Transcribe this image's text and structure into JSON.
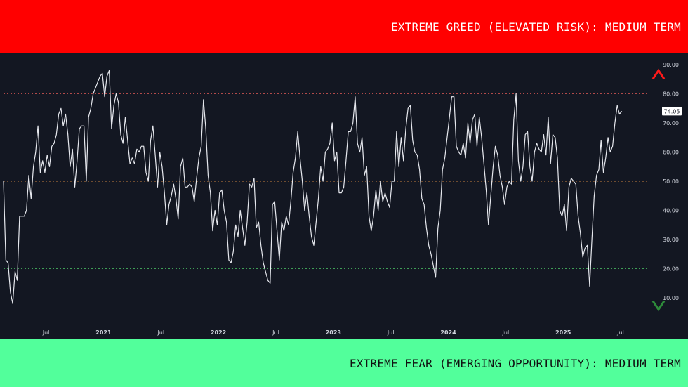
{
  "top_banner": {
    "label": "EXTREME GREED (ELEVATED RISK): MEDIUM TERM",
    "color": "#ff0000"
  },
  "bottom_banner": {
    "label": "EXTREME FEAR (EMERGING OPPORTUNITY): MEDIUM TERM",
    "color": "#52ff9b"
  },
  "chart_data": {
    "type": "line",
    "title": "",
    "xlabel": "",
    "ylabel": "",
    "ylim": [
      5,
      93
    ],
    "y_ticks": [
      "10.00",
      "20.00",
      "30.00",
      "40.00",
      "50.00",
      "60.00",
      "70.00",
      "80.00",
      "90.00"
    ],
    "y_tick_values": [
      10,
      20,
      30,
      40,
      50,
      60,
      70,
      80,
      90
    ],
    "x_ticks": [
      {
        "label": "Jul",
        "t": 2020.5
      },
      {
        "label": "2021",
        "t": 2021.0,
        "bold": true
      },
      {
        "label": "Jul",
        "t": 2021.5
      },
      {
        "label": "2022",
        "t": 2022.0,
        "bold": true
      },
      {
        "label": "Jul",
        "t": 2022.5
      },
      {
        "label": "2023",
        "t": 2023.0,
        "bold": true
      },
      {
        "label": "Jul",
        "t": 2023.5
      },
      {
        "label": "2024",
        "t": 2024.0,
        "bold": true
      },
      {
        "label": "Jul",
        "t": 2024.5
      },
      {
        "label": "2025",
        "t": 2025.0,
        "bold": true
      },
      {
        "label": "Jul",
        "t": 2025.5
      }
    ],
    "xlim": [
      2020.13,
      2025.75
    ],
    "reference_lines": [
      {
        "value": 80,
        "color": "#b24a4a"
      },
      {
        "value": 50,
        "color": "#c9823e"
      },
      {
        "value": 20,
        "color": "#3f9f57"
      }
    ],
    "last_value_label": "74.05",
    "arrow": {
      "top_color": "#ff1a1a",
      "bottom_color": "#2e8b3a"
    },
    "series": [
      {
        "color": "#e6e8ee",
        "points": [
          [
            2020.13,
            50
          ],
          [
            2020.15,
            23
          ],
          [
            2020.17,
            22
          ],
          [
            2020.19,
            12
          ],
          [
            2020.21,
            8
          ],
          [
            2020.23,
            19
          ],
          [
            2020.25,
            16
          ],
          [
            2020.27,
            38
          ],
          [
            2020.29,
            38
          ],
          [
            2020.31,
            38
          ],
          [
            2020.33,
            40
          ],
          [
            2020.35,
            52
          ],
          [
            2020.37,
            44
          ],
          [
            2020.39,
            55
          ],
          [
            2020.41,
            60
          ],
          [
            2020.43,
            69
          ],
          [
            2020.45,
            53
          ],
          [
            2020.47,
            57
          ],
          [
            2020.49,
            53
          ],
          [
            2020.51,
            59
          ],
          [
            2020.53,
            55
          ],
          [
            2020.55,
            62
          ],
          [
            2020.57,
            63
          ],
          [
            2020.59,
            66
          ],
          [
            2020.61,
            73
          ],
          [
            2020.63,
            75
          ],
          [
            2020.65,
            69
          ],
          [
            2020.67,
            73
          ],
          [
            2020.69,
            66
          ],
          [
            2020.71,
            55
          ],
          [
            2020.73,
            61
          ],
          [
            2020.75,
            48
          ],
          [
            2020.77,
            57
          ],
          [
            2020.79,
            68
          ],
          [
            2020.81,
            69
          ],
          [
            2020.83,
            69
          ],
          [
            2020.85,
            50
          ],
          [
            2020.87,
            72
          ],
          [
            2020.89,
            75
          ],
          [
            2020.91,
            80
          ],
          [
            2020.93,
            82
          ],
          [
            2020.95,
            84
          ],
          [
            2020.97,
            86
          ],
          [
            2020.99,
            87
          ],
          [
            2021.01,
            79
          ],
          [
            2021.03,
            86
          ],
          [
            2021.05,
            88
          ],
          [
            2021.07,
            68
          ],
          [
            2021.09,
            76
          ],
          [
            2021.11,
            80
          ],
          [
            2021.13,
            77
          ],
          [
            2021.15,
            66
          ],
          [
            2021.17,
            63
          ],
          [
            2021.19,
            72
          ],
          [
            2021.21,
            64
          ],
          [
            2021.23,
            56
          ],
          [
            2021.25,
            58
          ],
          [
            2021.27,
            56
          ],
          [
            2021.29,
            61
          ],
          [
            2021.31,
            60
          ],
          [
            2021.33,
            62
          ],
          [
            2021.35,
            62
          ],
          [
            2021.37,
            53
          ],
          [
            2021.39,
            50
          ],
          [
            2021.41,
            64
          ],
          [
            2021.43,
            69
          ],
          [
            2021.45,
            59
          ],
          [
            2021.47,
            48
          ],
          [
            2021.49,
            60
          ],
          [
            2021.51,
            55
          ],
          [
            2021.53,
            46
          ],
          [
            2021.55,
            35
          ],
          [
            2021.57,
            42
          ],
          [
            2021.59,
            45
          ],
          [
            2021.61,
            49
          ],
          [
            2021.63,
            44
          ],
          [
            2021.65,
            37
          ],
          [
            2021.67,
            55
          ],
          [
            2021.69,
            58
          ],
          [
            2021.71,
            48
          ],
          [
            2021.73,
            48
          ],
          [
            2021.75,
            49
          ],
          [
            2021.77,
            48
          ],
          [
            2021.79,
            43
          ],
          [
            2021.81,
            51
          ],
          [
            2021.83,
            58
          ],
          [
            2021.85,
            62
          ],
          [
            2021.87,
            78
          ],
          [
            2021.89,
            68
          ],
          [
            2021.91,
            52
          ],
          [
            2021.93,
            46
          ],
          [
            2021.95,
            33
          ],
          [
            2021.97,
            40
          ],
          [
            2021.99,
            35
          ],
          [
            2022.01,
            46
          ],
          [
            2022.03,
            47
          ],
          [
            2022.05,
            40
          ],
          [
            2022.07,
            36
          ],
          [
            2022.09,
            23
          ],
          [
            2022.11,
            22
          ],
          [
            2022.13,
            26
          ],
          [
            2022.15,
            35
          ],
          [
            2022.17,
            31
          ],
          [
            2022.19,
            40
          ],
          [
            2022.21,
            34
          ],
          [
            2022.23,
            28
          ],
          [
            2022.25,
            36
          ],
          [
            2022.27,
            49
          ],
          [
            2022.29,
            48
          ],
          [
            2022.31,
            51
          ],
          [
            2022.33,
            34
          ],
          [
            2022.35,
            36
          ],
          [
            2022.37,
            28
          ],
          [
            2022.39,
            22
          ],
          [
            2022.41,
            19
          ],
          [
            2022.43,
            16
          ],
          [
            2022.45,
            15
          ],
          [
            2022.47,
            42
          ],
          [
            2022.49,
            43
          ],
          [
            2022.51,
            33
          ],
          [
            2022.53,
            23
          ],
          [
            2022.55,
            36
          ],
          [
            2022.57,
            33
          ],
          [
            2022.59,
            38
          ],
          [
            2022.61,
            35
          ],
          [
            2022.63,
            43
          ],
          [
            2022.65,
            53
          ],
          [
            2022.67,
            58
          ],
          [
            2022.69,
            67
          ],
          [
            2022.71,
            58
          ],
          [
            2022.73,
            50
          ],
          [
            2022.75,
            40
          ],
          [
            2022.77,
            46
          ],
          [
            2022.79,
            38
          ],
          [
            2022.81,
            31
          ],
          [
            2022.83,
            28
          ],
          [
            2022.85,
            36
          ],
          [
            2022.87,
            44
          ],
          [
            2022.89,
            55
          ],
          [
            2022.91,
            50
          ],
          [
            2022.93,
            60
          ],
          [
            2022.95,
            61
          ],
          [
            2022.97,
            63
          ],
          [
            2022.99,
            70
          ],
          [
            2023.01,
            57
          ],
          [
            2023.03,
            60
          ],
          [
            2023.05,
            46
          ],
          [
            2023.07,
            46
          ],
          [
            2023.09,
            48
          ],
          [
            2023.11,
            57
          ],
          [
            2023.13,
            67
          ],
          [
            2023.15,
            67
          ],
          [
            2023.17,
            70
          ],
          [
            2023.19,
            79
          ],
          [
            2023.21,
            63
          ],
          [
            2023.23,
            60
          ],
          [
            2023.25,
            65
          ],
          [
            2023.27,
            52
          ],
          [
            2023.29,
            55
          ],
          [
            2023.31,
            38
          ],
          [
            2023.33,
            33
          ],
          [
            2023.35,
            38
          ],
          [
            2023.37,
            47
          ],
          [
            2023.39,
            40
          ],
          [
            2023.41,
            50
          ],
          [
            2023.43,
            43
          ],
          [
            2023.45,
            46
          ],
          [
            2023.47,
            43
          ],
          [
            2023.49,
            41
          ],
          [
            2023.51,
            50
          ],
          [
            2023.53,
            50
          ],
          [
            2023.55,
            67
          ],
          [
            2023.57,
            55
          ],
          [
            2023.59,
            65
          ],
          [
            2023.61,
            57
          ],
          [
            2023.63,
            68
          ],
          [
            2023.65,
            75
          ],
          [
            2023.67,
            76
          ],
          [
            2023.69,
            64
          ],
          [
            2023.71,
            60
          ],
          [
            2023.73,
            59
          ],
          [
            2023.75,
            54
          ],
          [
            2023.77,
            44
          ],
          [
            2023.79,
            42
          ],
          [
            2023.81,
            34
          ],
          [
            2023.83,
            28
          ],
          [
            2023.85,
            25
          ],
          [
            2023.87,
            21
          ],
          [
            2023.89,
            17
          ],
          [
            2023.91,
            34
          ],
          [
            2023.93,
            40
          ],
          [
            2023.95,
            54
          ],
          [
            2023.97,
            58
          ],
          [
            2023.99,
            65
          ],
          [
            2024.01,
            72
          ],
          [
            2024.03,
            79
          ],
          [
            2024.05,
            79
          ],
          [
            2024.07,
            62
          ],
          [
            2024.09,
            60
          ],
          [
            2024.11,
            59
          ],
          [
            2024.13,
            63
          ],
          [
            2024.15,
            58
          ],
          [
            2024.17,
            70
          ],
          [
            2024.19,
            63
          ],
          [
            2024.21,
            71
          ],
          [
            2024.23,
            73
          ],
          [
            2024.25,
            62
          ],
          [
            2024.27,
            72
          ],
          [
            2024.29,
            65
          ],
          [
            2024.31,
            56
          ],
          [
            2024.33,
            47
          ],
          [
            2024.35,
            35
          ],
          [
            2024.37,
            45
          ],
          [
            2024.39,
            55
          ],
          [
            2024.41,
            62
          ],
          [
            2024.43,
            59
          ],
          [
            2024.45,
            52
          ],
          [
            2024.47,
            48
          ],
          [
            2024.49,
            42
          ],
          [
            2024.51,
            48
          ],
          [
            2024.53,
            50
          ],
          [
            2024.55,
            49
          ],
          [
            2024.57,
            71
          ],
          [
            2024.59,
            80
          ],
          [
            2024.61,
            57
          ],
          [
            2024.63,
            50
          ],
          [
            2024.65,
            55
          ],
          [
            2024.67,
            66
          ],
          [
            2024.69,
            67
          ],
          [
            2024.71,
            55
          ],
          [
            2024.73,
            50
          ],
          [
            2024.75,
            60
          ],
          [
            2024.77,
            63
          ],
          [
            2024.79,
            61
          ],
          [
            2024.81,
            60
          ],
          [
            2024.83,
            66
          ],
          [
            2024.85,
            59
          ],
          [
            2024.87,
            72
          ],
          [
            2024.89,
            56
          ],
          [
            2024.91,
            66
          ],
          [
            2024.93,
            65
          ],
          [
            2024.95,
            58
          ],
          [
            2024.97,
            40
          ],
          [
            2024.99,
            38
          ],
          [
            2025.01,
            42
          ],
          [
            2025.03,
            33
          ],
          [
            2025.05,
            48
          ],
          [
            2025.07,
            51
          ],
          [
            2025.09,
            50
          ],
          [
            2025.11,
            49
          ],
          [
            2025.13,
            38
          ],
          [
            2025.15,
            32
          ],
          [
            2025.17,
            24
          ],
          [
            2025.19,
            27
          ],
          [
            2025.21,
            28
          ],
          [
            2025.23,
            14
          ],
          [
            2025.25,
            30
          ],
          [
            2025.27,
            45
          ],
          [
            2025.29,
            52
          ],
          [
            2025.31,
            54
          ],
          [
            2025.33,
            64
          ],
          [
            2025.35,
            53
          ],
          [
            2025.37,
            58
          ],
          [
            2025.39,
            65
          ],
          [
            2025.41,
            60
          ],
          [
            2025.43,
            62
          ],
          [
            2025.45,
            70
          ],
          [
            2025.47,
            76
          ],
          [
            2025.49,
            73
          ],
          [
            2025.51,
            74
          ]
        ]
      }
    ]
  }
}
